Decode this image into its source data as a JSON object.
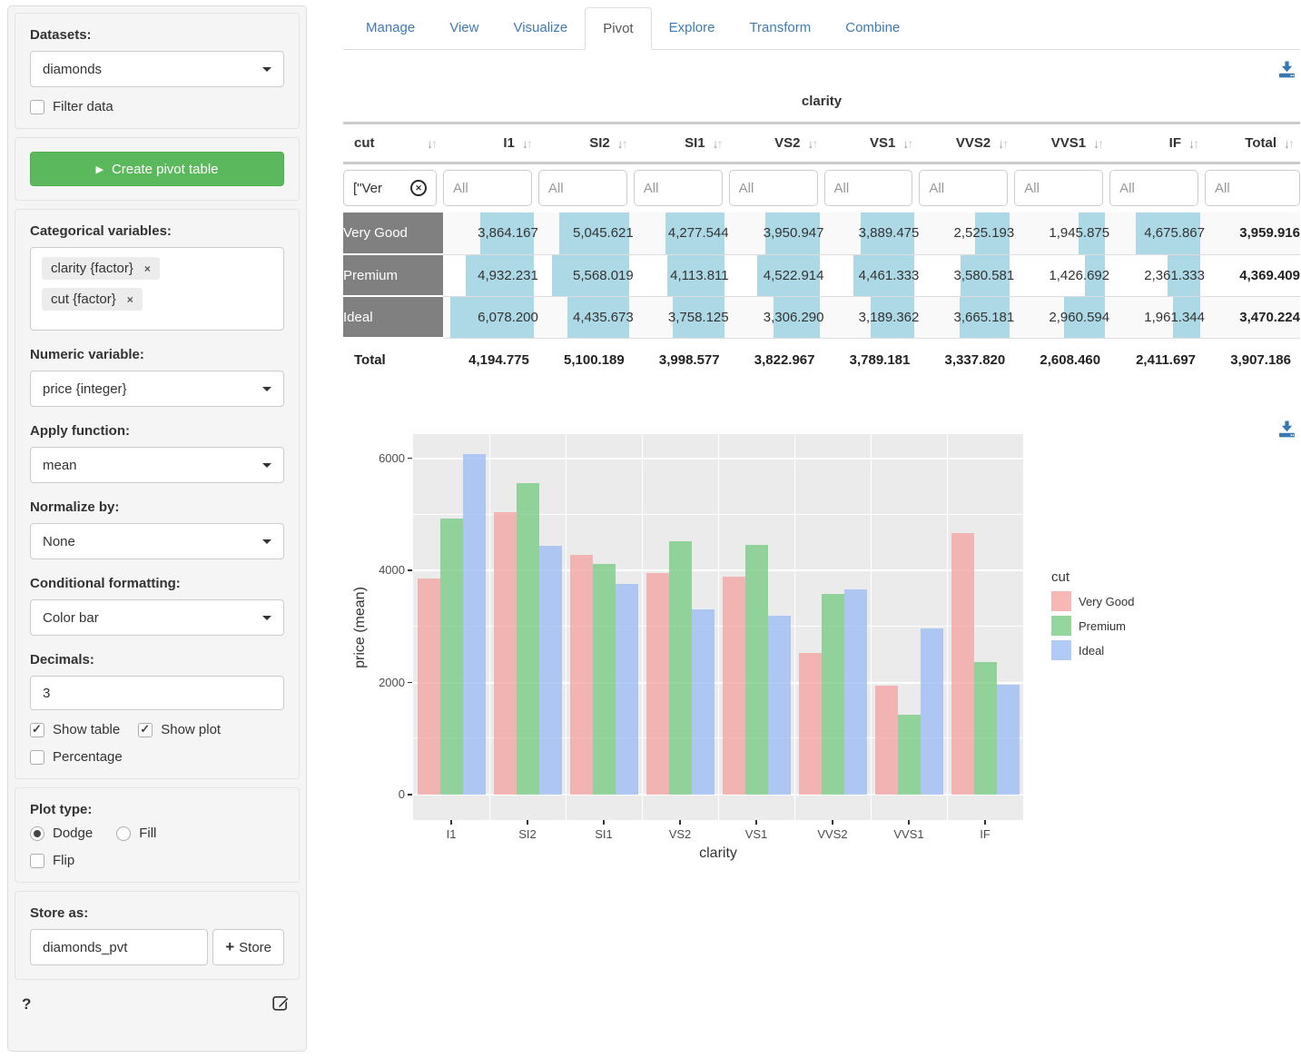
{
  "sidebar": {
    "datasets_label": "Datasets:",
    "dataset_value": "diamonds",
    "filter_data_label": "Filter data",
    "create_button_label": "Create pivot table",
    "categorical_label": "Categorical variables:",
    "categorical_tags": [
      "clarity {factor}",
      "cut {factor}"
    ],
    "numeric_label": "Numeric variable:",
    "numeric_value": "price {integer}",
    "apply_label": "Apply function:",
    "apply_value": "mean",
    "normalize_label": "Normalize by:",
    "normalize_value": "None",
    "conditional_label": "Conditional formatting:",
    "conditional_value": "Color bar",
    "decimals_label": "Decimals:",
    "decimals_value": "3",
    "show_table_label": "Show table",
    "show_plot_label": "Show plot",
    "percentage_label": "Percentage",
    "plot_type_label": "Plot type:",
    "plot_type_options": [
      "Dodge",
      "Fill"
    ],
    "plot_type_selected": "Dodge",
    "flip_label": "Flip",
    "store_label": "Store as:",
    "store_value": "diamonds_pvt",
    "store_button_label": "Store",
    "help_label": "?"
  },
  "tabs": {
    "items": [
      "Manage",
      "View",
      "Visualize",
      "Pivot",
      "Explore",
      "Transform",
      "Combine"
    ],
    "active": "Pivot"
  },
  "pivot_table": {
    "group_header": "clarity",
    "row_header": "cut",
    "columns": [
      "I1",
      "SI2",
      "SI1",
      "VS2",
      "VS1",
      "VVS2",
      "VVS1",
      "IF",
      "Total"
    ],
    "filter_value": "[\"Ver",
    "filter_placeholder": "All",
    "bar_max": 6078.2,
    "bar_color": "#ADD8E6",
    "rows": [
      {
        "label": "Very Good",
        "values": [
          3864.167,
          5045.621,
          4277.544,
          3950.947,
          3889.475,
          2525.193,
          1945.875,
          4675.867
        ],
        "total": 3959.916
      },
      {
        "label": "Premium",
        "values": [
          4932.231,
          5568.019,
          4113.811,
          4522.914,
          4461.333,
          3580.581,
          1426.692,
          2361.333
        ],
        "total": 4369.409
      },
      {
        "label": "Ideal",
        "values": [
          6078.2,
          4435.673,
          3758.125,
          3306.29,
          3189.362,
          3665.181,
          2960.594,
          1961.344
        ],
        "total": 3470.224
      }
    ],
    "total_row": {
      "label": "Total",
      "values": [
        4194.775,
        5100.189,
        3998.577,
        3822.967,
        3789.181,
        3337.82,
        2608.46,
        2411.697
      ],
      "total": 3907.186
    }
  },
  "chart_data": {
    "type": "bar",
    "title": "",
    "categories": [
      "I1",
      "SI2",
      "SI1",
      "VS2",
      "VS1",
      "VVS2",
      "VVS1",
      "IF"
    ],
    "series": [
      {
        "name": "Very Good",
        "color": "rgba(244,165,165,0.8)",
        "values": [
          3864.167,
          5045.621,
          4277.544,
          3950.947,
          3889.475,
          2525.193,
          1945.875,
          4675.867
        ]
      },
      {
        "name": "Premium",
        "color": "rgba(121,204,134,0.8)",
        "values": [
          4932.231,
          5568.019,
          4113.811,
          4522.914,
          4461.333,
          3580.581,
          1426.692,
          2361.333
        ]
      },
      {
        "name": "Ideal",
        "color": "rgba(159,189,244,0.8)",
        "values": [
          6078.2,
          4435.673,
          3758.125,
          3306.29,
          3189.362,
          3665.181,
          2960.594,
          1961.344
        ]
      }
    ],
    "xlabel": "clarity",
    "ylabel": "price (mean)",
    "ylim": [
      0,
      6300
    ],
    "yticks": [
      0,
      2000,
      4000,
      6000
    ],
    "yticks_minor": [
      1000,
      3000,
      5000
    ],
    "legend_title": "cut",
    "legend_position": "right",
    "panel_bg": "#EBEBEB",
    "grid": "on"
  }
}
